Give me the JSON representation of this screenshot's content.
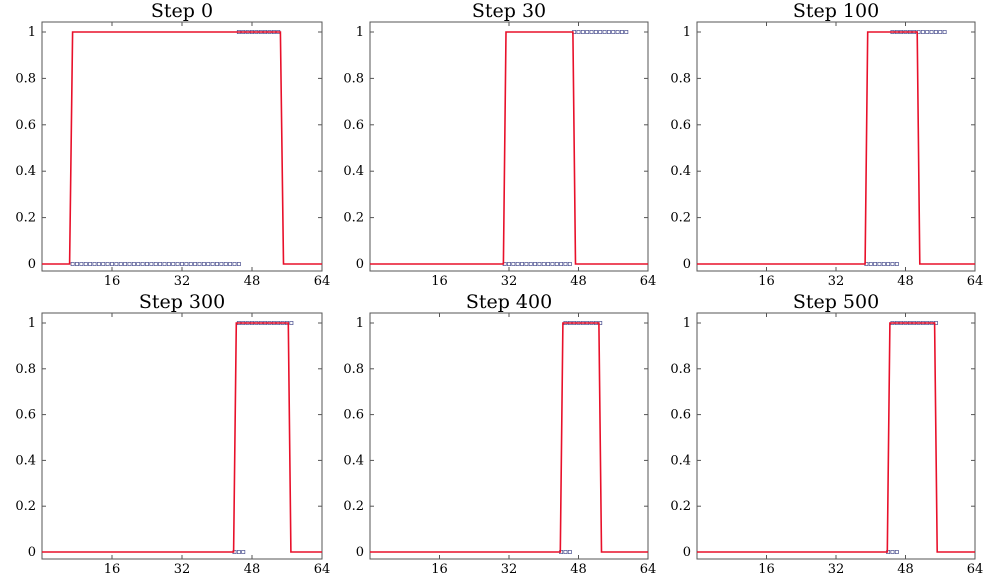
{
  "chart_data": [
    {
      "type": "line",
      "title": "Step 0",
      "xlim": [
        0,
        64
      ],
      "ylim": [
        0,
        1
      ],
      "xticks": [
        16,
        32,
        48,
        64
      ],
      "yticks": [
        0,
        0.2,
        0.4,
        0.6,
        0.8,
        1
      ],
      "ytick_labels": [
        "0",
        "0.2",
        "0.4",
        "0.6",
        "0.8",
        "1"
      ],
      "series": [
        {
          "kind": "line",
          "color": "#e8102a",
          "x": [
            0,
            6.3,
            7,
            54.5,
            55.2,
            64
          ],
          "y": [
            0,
            0,
            1,
            1,
            0,
            0
          ]
        },
        {
          "kind": "markers",
          "color": "#4a4f8f",
          "y": 0,
          "x_from": 7,
          "x_to": 45
        },
        {
          "kind": "markers",
          "color": "#4a4f8f",
          "y": 1,
          "x_from": 45,
          "x_to": 54
        }
      ]
    },
    {
      "type": "line",
      "title": "Step 30",
      "xlim": [
        0,
        64
      ],
      "ylim": [
        0,
        1
      ],
      "xticks": [
        32,
        48,
        64
      ],
      "yticks": [
        0,
        0.2,
        0.4,
        0.6,
        0.8,
        1
      ],
      "ytick_labels": [
        "0",
        "0.2",
        "0.4",
        "0.6",
        "0.8",
        "1"
      ],
      "extra_tick_text": "16",
      "series": [
        {
          "kind": "line",
          "color": "#e8102a",
          "x": [
            0,
            30.7,
            31.3,
            46.7,
            47.3,
            64
          ],
          "y": [
            0,
            0,
            1,
            1,
            0,
            0
          ]
        },
        {
          "kind": "markers",
          "color": "#4a4f8f",
          "y": 0,
          "x_from": 31,
          "x_to": 46
        },
        {
          "kind": "markers",
          "color": "#4a4f8f",
          "y": 1,
          "x_from": 47,
          "x_to": 59
        }
      ]
    },
    {
      "type": "line",
      "title": "Step 100",
      "xlim": [
        0,
        64
      ],
      "ylim": [
        0,
        1
      ],
      "xticks": [
        16,
        32,
        48,
        64
      ],
      "yticks": [
        0,
        0.2,
        0.4,
        0.6,
        0.8,
        1
      ],
      "ytick_labels": [
        "0",
        "0.2",
        "0.4",
        "0.6",
        "0.8",
        "1"
      ],
      "series": [
        {
          "kind": "line",
          "color": "#e8102a",
          "x": [
            0,
            38.7,
            39.3,
            50.7,
            51.3,
            64
          ],
          "y": [
            0,
            0,
            1,
            1,
            0,
            0
          ]
        },
        {
          "kind": "markers",
          "color": "#4a4f8f",
          "y": 0,
          "x_from": 39,
          "x_to": 46
        },
        {
          "kind": "markers",
          "color": "#4a4f8f",
          "y": 1,
          "x_from": 45,
          "x_to": 57
        }
      ]
    },
    {
      "type": "line",
      "title": "Step 300",
      "xlim": [
        0,
        64
      ],
      "ylim": [
        0,
        1
      ],
      "xticks": [
        16,
        32,
        48,
        64
      ],
      "yticks": [
        0,
        0.2,
        0.4,
        0.6,
        0.8,
        1
      ],
      "ytick_labels": [
        "0",
        "0.2",
        "0.4",
        "0.6",
        "0.8",
        "1"
      ],
      "series": [
        {
          "kind": "line",
          "color": "#e8102a",
          "x": [
            0,
            43.8,
            44.4,
            56.3,
            56.9,
            64
          ],
          "y": [
            0,
            0,
            1,
            1,
            0,
            0
          ]
        },
        {
          "kind": "markers",
          "color": "#4a4f8f",
          "y": 0,
          "x_from": 44,
          "x_to": 46
        },
        {
          "kind": "markers",
          "color": "#4a4f8f",
          "y": 1,
          "x_from": 45,
          "x_to": 57
        }
      ]
    },
    {
      "type": "line",
      "title": "Step 400",
      "xlim": [
        0,
        64
      ],
      "ylim": [
        0,
        1
      ],
      "xticks": [
        16,
        32,
        48,
        64
      ],
      "yticks": [
        0,
        0.2,
        0.4,
        0.6,
        0.8,
        1
      ],
      "ytick_labels": [
        "0",
        "0.2",
        "0.4",
        "0.6",
        "0.8",
        "1"
      ],
      "series": [
        {
          "kind": "line",
          "color": "#e8102a",
          "x": [
            0,
            43.8,
            44.4,
            52.7,
            53.3,
            64
          ],
          "y": [
            0,
            0,
            1,
            1,
            0,
            0
          ]
        },
        {
          "kind": "markers",
          "color": "#4a4f8f",
          "y": 0,
          "x_from": 44,
          "x_to": 46
        },
        {
          "kind": "markers",
          "color": "#4a4f8f",
          "y": 1,
          "x_from": 45,
          "x_to": 53
        }
      ]
    },
    {
      "type": "line",
      "title": "Step 500",
      "xlim": [
        0,
        64
      ],
      "ylim": [
        0,
        1
      ],
      "xticks": [
        16,
        32,
        48,
        64
      ],
      "yticks": [
        0,
        0.2,
        0.4,
        0.6,
        0.8,
        1
      ],
      "ytick_labels": [
        "0",
        "0.2",
        "0.4",
        "0.6",
        "0.8",
        "1"
      ],
      "series": [
        {
          "kind": "line",
          "color": "#e8102a",
          "x": [
            0,
            43.8,
            44.4,
            54.7,
            55.3,
            64
          ],
          "y": [
            0,
            0,
            1,
            1,
            0,
            0
          ]
        },
        {
          "kind": "markers",
          "color": "#4a4f8f",
          "y": 0,
          "x_from": 44,
          "x_to": 46
        },
        {
          "kind": "markers",
          "color": "#4a4f8f",
          "y": 1,
          "x_from": 45,
          "x_to": 55
        }
      ]
    }
  ]
}
